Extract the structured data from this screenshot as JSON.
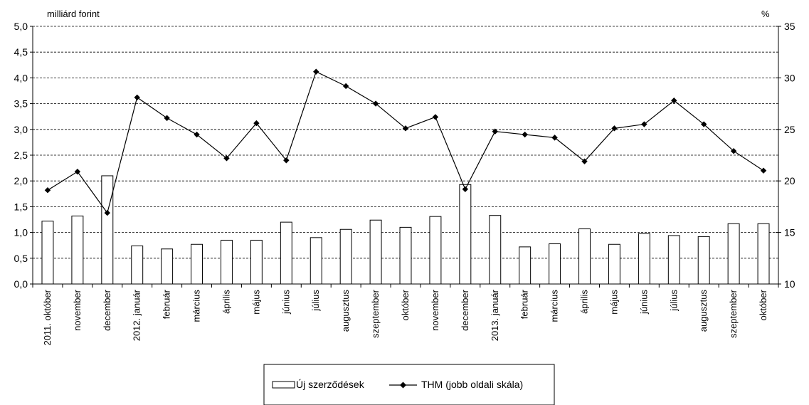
{
  "chart_data": {
    "type": "bar",
    "title": "",
    "ylabel": "milliárd forint",
    "y2label": "%",
    "ylim": [
      0,
      5
    ],
    "y2lim": [
      10,
      35
    ],
    "yticks": [
      "0,0",
      "0,5",
      "1,0",
      "1,5",
      "2,0",
      "2,5",
      "3,0",
      "3,5",
      "4,0",
      "4,5",
      "5,0"
    ],
    "y2ticks": [
      "10",
      "15",
      "20",
      "25",
      "30",
      "35"
    ],
    "grid": true,
    "legend_position": "bottom",
    "categories": [
      "2011. október",
      "november",
      "december",
      "2012. január",
      "február",
      "március",
      "április",
      "május",
      "június",
      "július",
      "augusztus",
      "szeptember",
      "október",
      "november",
      "december",
      "2013. január",
      "február",
      "március",
      "április",
      "május",
      "június",
      "július",
      "augusztus",
      "szeptember",
      "október"
    ],
    "series": [
      {
        "name": "Új szerződések",
        "type": "bar",
        "axis": "left",
        "color": "#ffffff",
        "values": [
          1.22,
          1.32,
          2.1,
          0.74,
          0.68,
          0.77,
          0.85,
          0.85,
          1.2,
          0.9,
          1.06,
          1.24,
          1.1,
          1.31,
          1.93,
          1.33,
          0.72,
          0.78,
          1.07,
          0.77,
          0.98,
          0.94,
          0.92,
          1.17,
          1.17
        ]
      },
      {
        "name": "THM (jobb oldali skála)",
        "type": "line",
        "axis": "right",
        "color": "#000000",
        "values": [
          19.1,
          20.9,
          16.9,
          28.1,
          26.1,
          24.5,
          22.2,
          25.6,
          22.0,
          30.6,
          29.2,
          27.5,
          25.1,
          26.2,
          19.2,
          24.8,
          24.5,
          24.2,
          21.9,
          25.1,
          25.5,
          27.8,
          25.5,
          22.9,
          21.0
        ]
      }
    ]
  }
}
